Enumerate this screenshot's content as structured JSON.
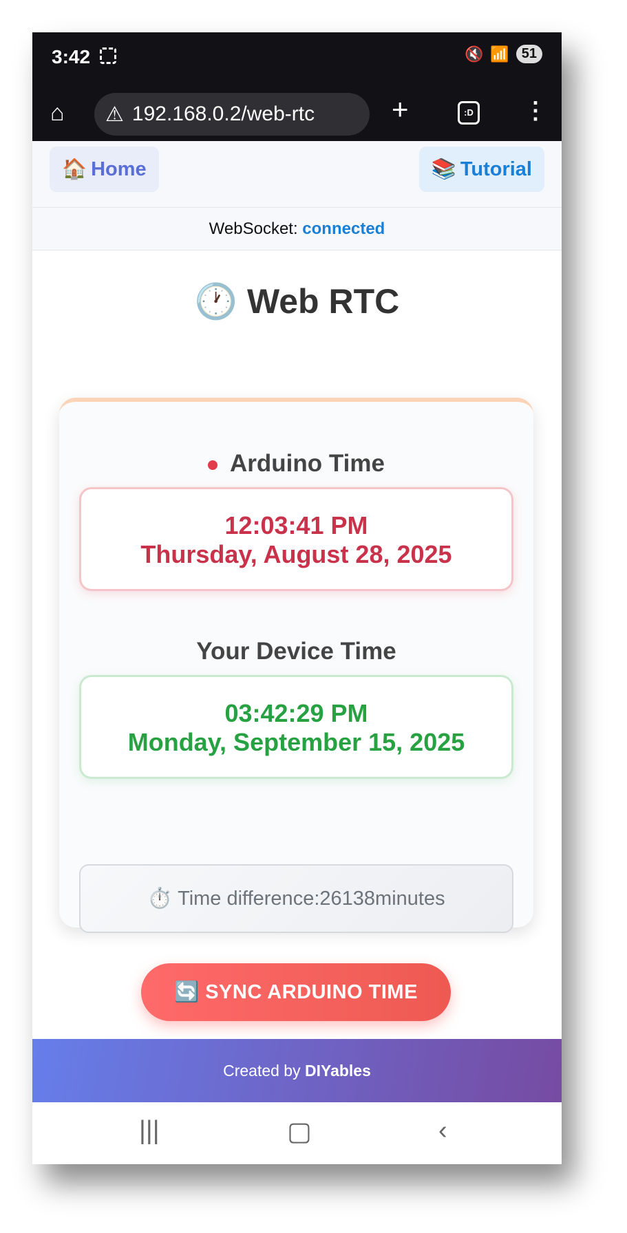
{
  "status_bar": {
    "time": "3:42",
    "battery": "51",
    "icons": [
      "screenshot-icon",
      "mute-icon",
      "wifi-icon",
      "signal-icon"
    ]
  },
  "browser": {
    "url": "192.168.0.2/web-rtc",
    "tabs_label": ":D"
  },
  "nav": {
    "home_label": "Home",
    "home_icon": "🏠",
    "tutorial_label": "Tutorial",
    "tutorial_icon": "📚"
  },
  "websocket": {
    "label": "WebSocket:",
    "status": "connected"
  },
  "page": {
    "title": "Web RTC",
    "title_icon": "🕐"
  },
  "arduino": {
    "label": "Arduino Time",
    "time": "12:03:41 PM",
    "date": "Thursday, August 28, 2025"
  },
  "device": {
    "label": "Your Device Time",
    "time": "03:42:29 PM",
    "date": "Monday, September 15, 2025"
  },
  "difference": {
    "icon": "⏱️",
    "label": "Time difference:",
    "value": "26138",
    "unit": "minutes"
  },
  "sync_button": {
    "icon": "🔄",
    "label": "SYNC ARDUINO TIME"
  },
  "footer": {
    "prefix": "Created by",
    "brand": "DIYables"
  },
  "colors": {
    "arduino": "#c8324a",
    "device": "#28a143",
    "connected": "#1a7fd6",
    "button": "#ff6a6a"
  }
}
